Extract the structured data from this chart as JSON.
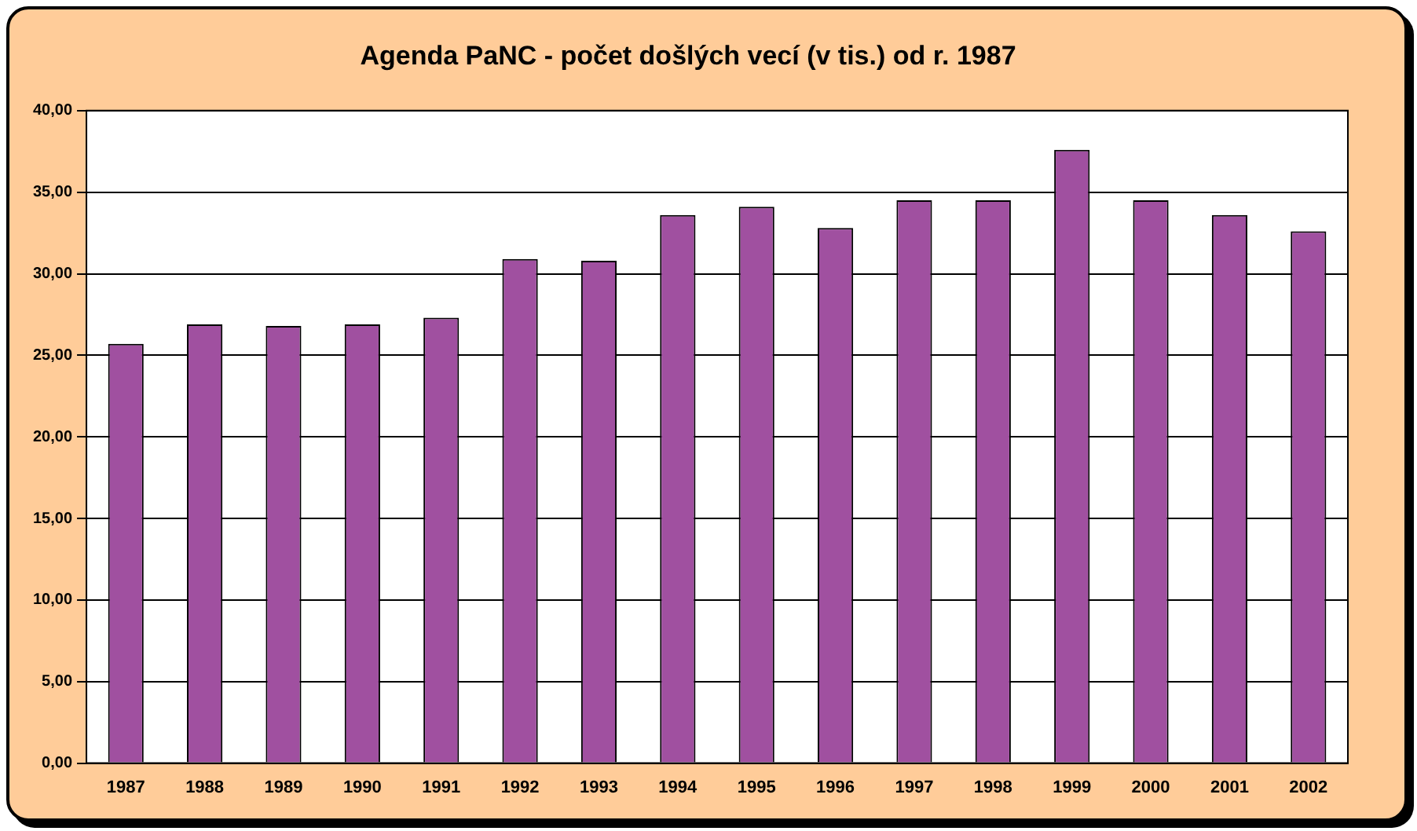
{
  "chart_data": {
    "type": "bar",
    "title": "Agenda PaNC - počet došlých vecí (v tis.) od r. 1987",
    "categories": [
      "1987",
      "1988",
      "1989",
      "1990",
      "1991",
      "1992",
      "1993",
      "1994",
      "1995",
      "1996",
      "1997",
      "1998",
      "1999",
      "2000",
      "2001",
      "2002"
    ],
    "values": [
      25.7,
      26.9,
      26.8,
      26.9,
      27.3,
      30.9,
      30.8,
      33.6,
      34.1,
      32.8,
      34.5,
      34.5,
      37.6,
      34.5,
      33.6,
      32.6
    ],
    "color": "#a050a0",
    "ylim": [
      0,
      40
    ],
    "yticks": [
      {
        "value": 0,
        "label": "0,00"
      },
      {
        "value": 5,
        "label": "5,00"
      },
      {
        "value": 10,
        "label": "10,00"
      },
      {
        "value": 15,
        "label": "15,00"
      },
      {
        "value": 20,
        "label": "20,00"
      },
      {
        "value": 25,
        "label": "25,00"
      },
      {
        "value": 30,
        "label": "30,00"
      },
      {
        "value": 35,
        "label": "35,00"
      },
      {
        "value": 40,
        "label": "40,00"
      }
    ],
    "grid": "y"
  }
}
